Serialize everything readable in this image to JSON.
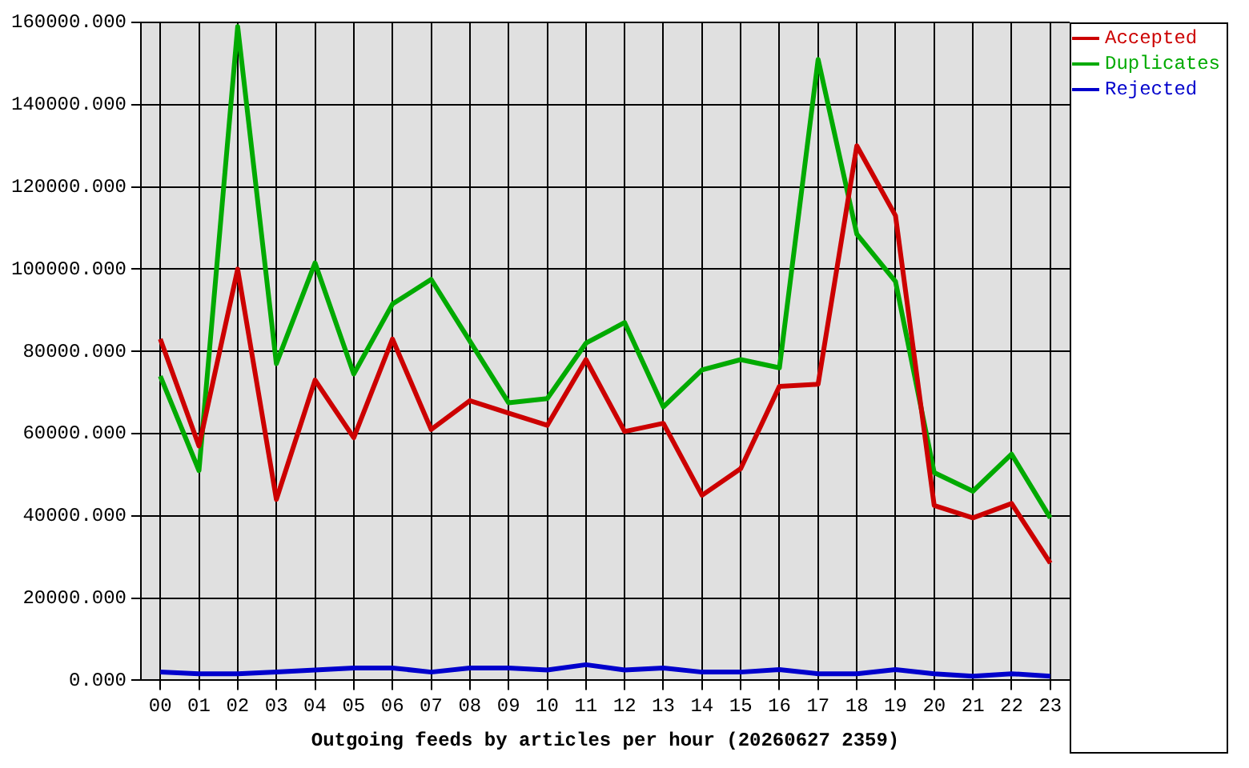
{
  "chart_data": {
    "type": "line",
    "xlabel": "Outgoing feeds by articles per hour (20260627 2359)",
    "categories": [
      "00",
      "01",
      "02",
      "03",
      "04",
      "05",
      "06",
      "07",
      "08",
      "09",
      "10",
      "11",
      "12",
      "13",
      "14",
      "15",
      "16",
      "17",
      "18",
      "19",
      "20",
      "21",
      "22",
      "23"
    ],
    "series": [
      {
        "name": "Accepted",
        "color": "#cc0000",
        "values": [
          83000,
          57000,
          100000,
          44000,
          73000,
          59000,
          83000,
          61000,
          68000,
          65000,
          62000,
          78000,
          60500,
          62500,
          45000,
          51500,
          71500,
          72000,
          130000,
          113000,
          42500,
          39500,
          43000,
          28500
        ]
      },
      {
        "name": "Duplicates",
        "color": "#00aa00",
        "values": [
          74000,
          51000,
          159000,
          77000,
          101500,
          74500,
          91500,
          97500,
          82500,
          67500,
          68500,
          82000,
          87000,
          66500,
          75500,
          78000,
          76000,
          151000,
          108500,
          97000,
          50500,
          46000,
          55000,
          39500
        ]
      },
      {
        "name": "Rejected",
        "color": "#0000cc",
        "values": [
          2000,
          1600,
          1600,
          2000,
          2500,
          3000,
          3000,
          2000,
          3000,
          3000,
          2500,
          3800,
          2500,
          3000,
          2000,
          2000,
          2600,
          1600,
          1600,
          2600,
          1600,
          1000,
          1600,
          1000
        ]
      }
    ],
    "ylim": [
      0,
      160000
    ],
    "yticks": [
      {
        "value": 0,
        "label": "0.000"
      },
      {
        "value": 20000,
        "label": "20000.000"
      },
      {
        "value": 40000,
        "label": "40000.000"
      },
      {
        "value": 60000,
        "label": "60000.000"
      },
      {
        "value": 80000,
        "label": "80000.000"
      },
      {
        "value": 100000,
        "label": "100000.000"
      },
      {
        "value": 120000,
        "label": "120000.000"
      },
      {
        "value": 140000,
        "label": "140000.000"
      },
      {
        "value": 160000,
        "label": "160000.000"
      }
    ],
    "grid": true,
    "legend": "top right",
    "marker": "none",
    "line_style": "solid"
  }
}
